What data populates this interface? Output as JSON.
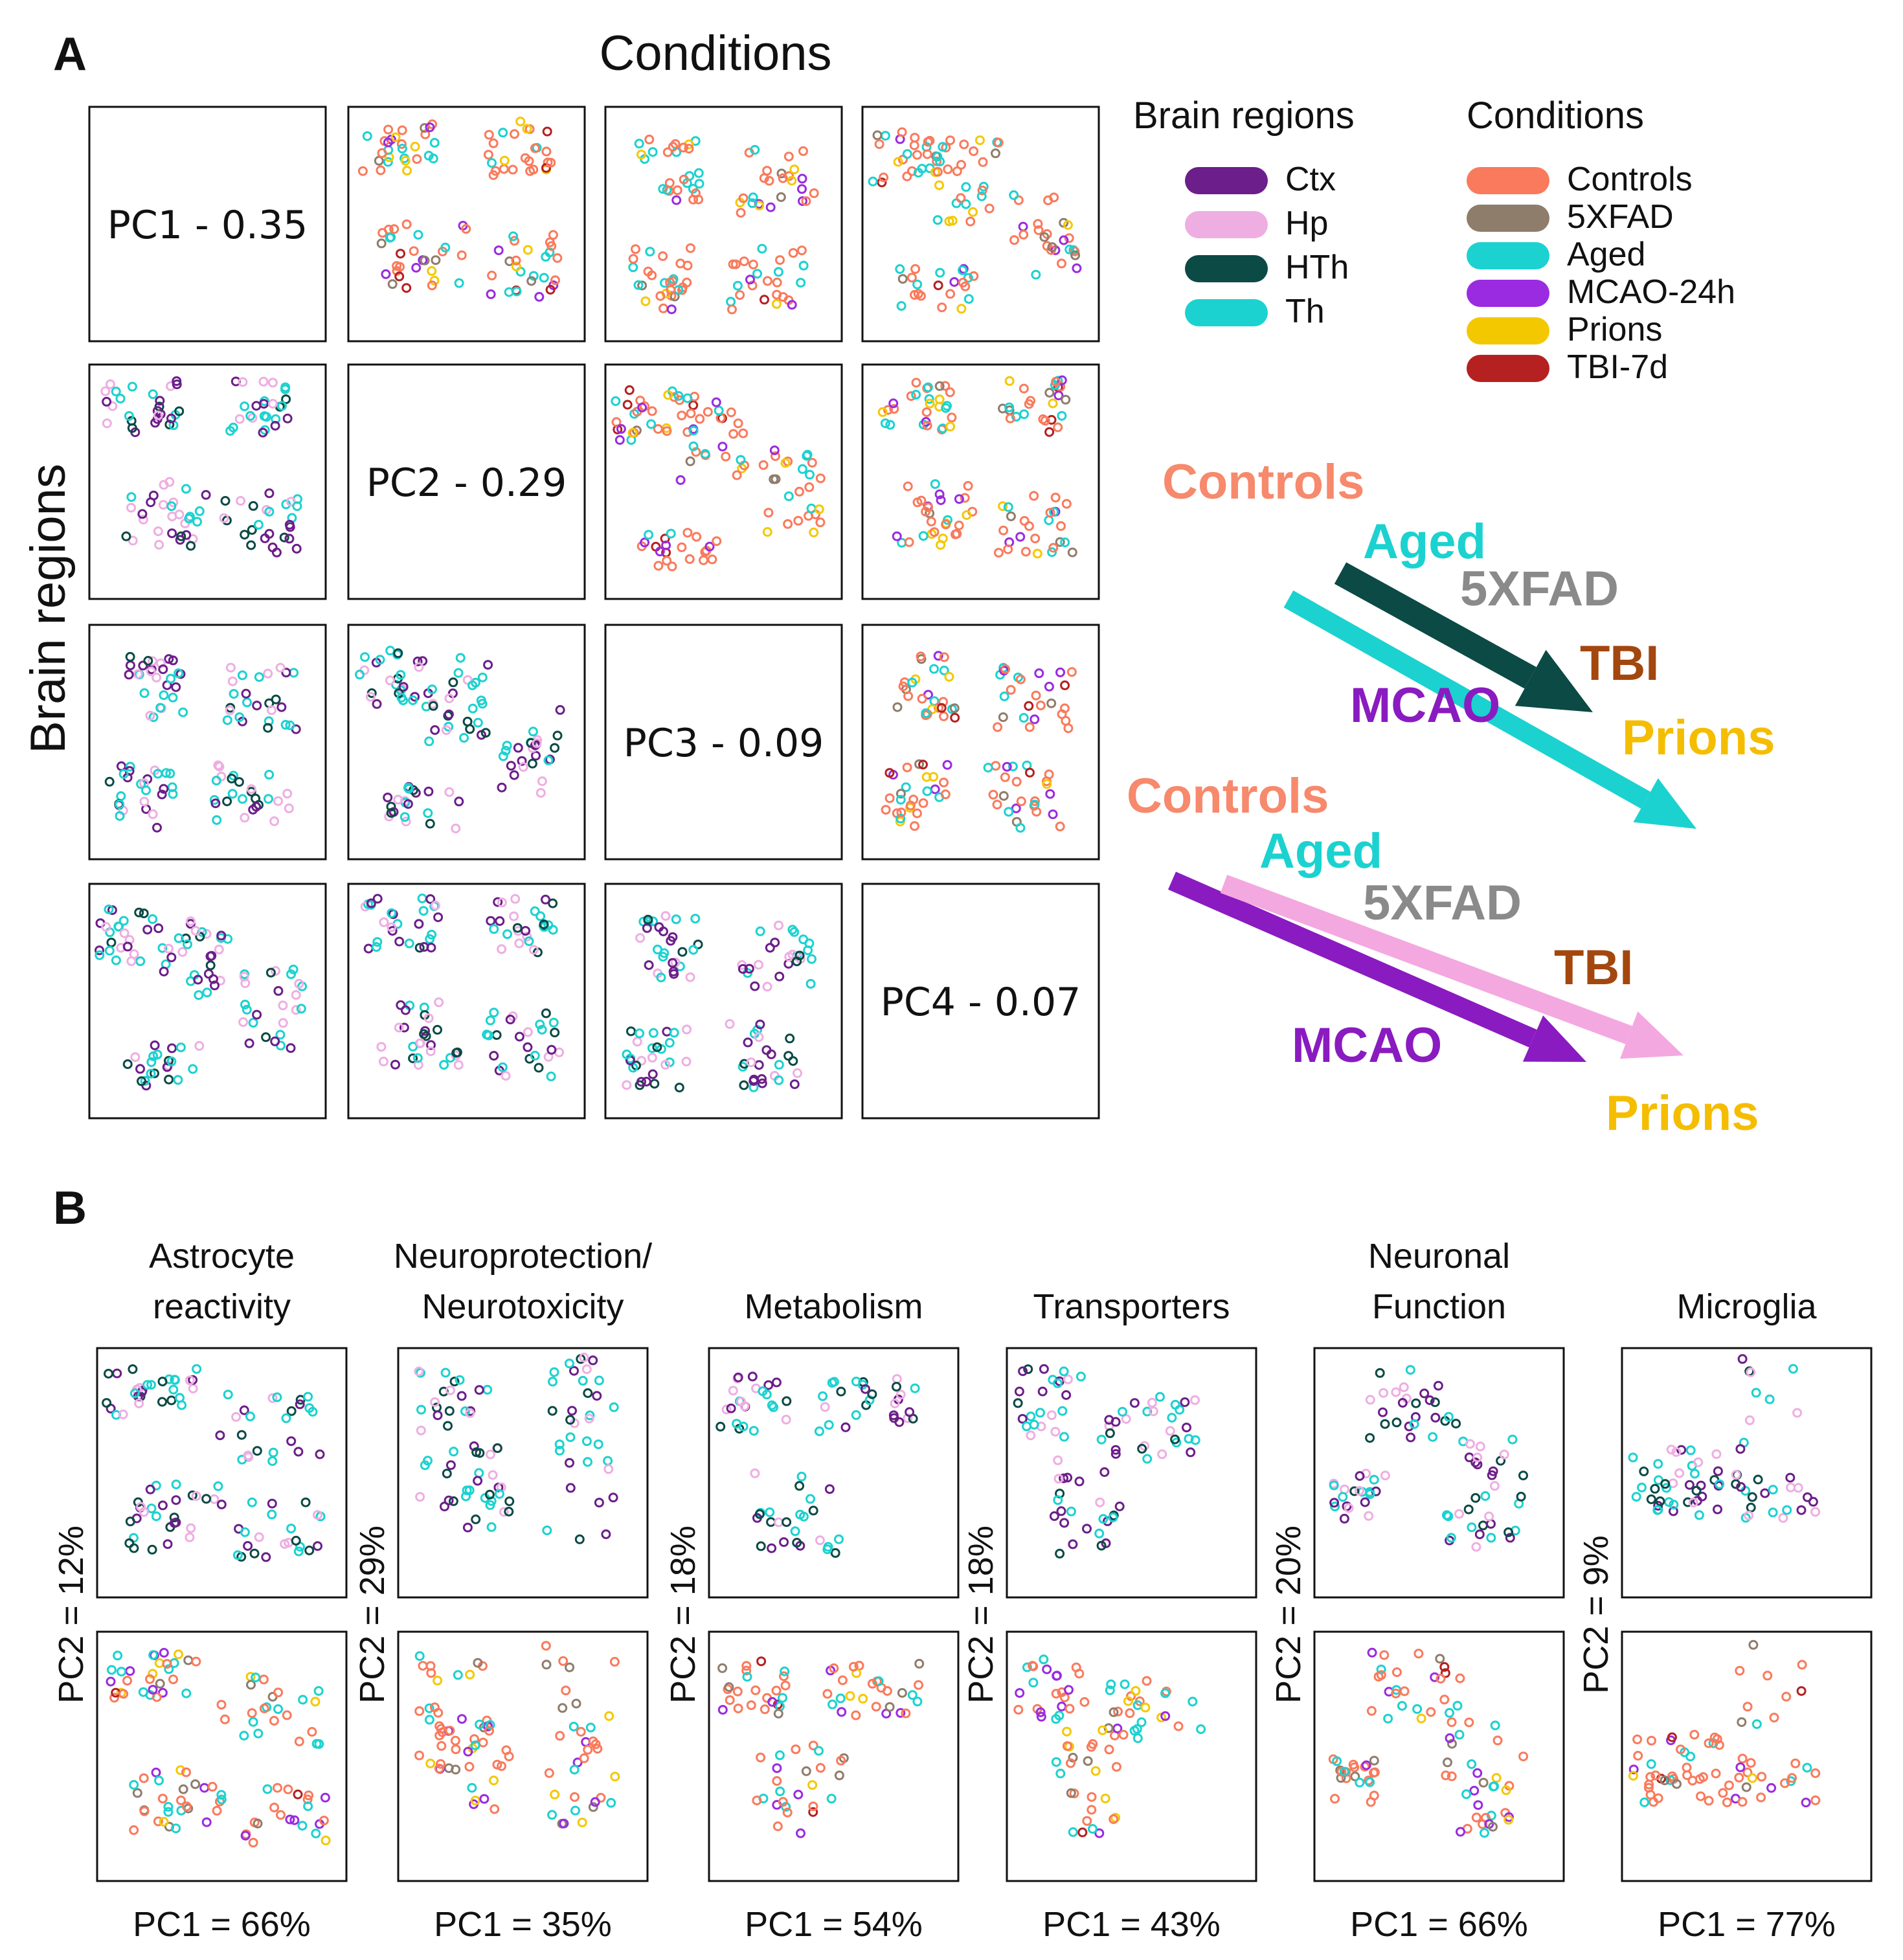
{
  "panel_a": {
    "label": "A",
    "top_title": "Conditions",
    "side_title": "Brain regions",
    "diagonal_labels": [
      "PC1 - 0.35",
      "PC2 - 0.29",
      "PC3 - 0.09",
      "PC4 - 0.07"
    ],
    "legend_regions": {
      "title": "Brain regions",
      "items": [
        {
          "label": "Ctx",
          "color": "#6c1e8a"
        },
        {
          "label": "Hp",
          "color": "#eeaee2"
        },
        {
          "label": "HTh",
          "color": "#0b4a45"
        },
        {
          "label": "Th",
          "color": "#1bd2d0"
        }
      ]
    },
    "legend_conditions": {
      "title": "Conditions",
      "items": [
        {
          "label": "Controls",
          "color": "#f97a5c"
        },
        {
          "label": "5XFAD",
          "color": "#8f7d6c"
        },
        {
          "label": "Aged",
          "color": "#1bd2d0"
        },
        {
          "label": "MCAO-24h",
          "color": "#9a2be0"
        },
        {
          "label": "Prions",
          "color": "#f4c800"
        },
        {
          "label": "TBI-7d",
          "color": "#b52020"
        }
      ]
    },
    "trajectory_top": {
      "labels": [
        {
          "text": "Controls",
          "color": "#f7896c"
        },
        {
          "text": "Aged",
          "color": "#1bd2d0"
        },
        {
          "text": "5XFAD",
          "color": "#8a8a8a"
        },
        {
          "text": "TBI",
          "color": "#a3470e"
        },
        {
          "text": "MCAO",
          "color": "#8a1bc0"
        },
        {
          "text": "Prions",
          "color": "#f5bd00"
        }
      ],
      "arrow_colors": [
        "#0b4a45",
        "#1bd2d0"
      ]
    },
    "trajectory_bottom": {
      "labels": [
        {
          "text": "Controls",
          "color": "#f7896c"
        },
        {
          "text": "Aged",
          "color": "#1bd2d0"
        },
        {
          "text": "5XFAD",
          "color": "#8a8a8a"
        },
        {
          "text": "TBI",
          "color": "#a3470e"
        },
        {
          "text": "MCAO",
          "color": "#8a1bc0"
        },
        {
          "text": "Prions",
          "color": "#f5bd00"
        }
      ],
      "arrow_colors": [
        "#8a1bc0",
        "#f4a8e0"
      ]
    }
  },
  "panel_b": {
    "label": "B",
    "columns": [
      {
        "title_lines": [
          "Astrocyte",
          "reactivity"
        ],
        "pc1": "PC1 = 66%",
        "pc2": "PC2 = 12%"
      },
      {
        "title_lines": [
          "Neuroprotection/",
          "Neurotoxicity"
        ],
        "pc1": "PC1 = 35%",
        "pc2": "PC2 = 29%"
      },
      {
        "title_lines": [
          "Metabolism"
        ],
        "pc1": "PC1 = 54%",
        "pc2": "PC2 = 18%"
      },
      {
        "title_lines": [
          "Transporters"
        ],
        "pc1": "PC1 = 43%",
        "pc2": "PC2 = 18%"
      },
      {
        "title_lines": [
          "Neuronal",
          "Function"
        ],
        "pc1": "PC1 = 66%",
        "pc2": "PC2 = 20%"
      },
      {
        "title_lines": [
          "Microglia"
        ],
        "pc1": "PC1 = 77%",
        "pc2": "PC2 = 9%"
      }
    ]
  }
}
